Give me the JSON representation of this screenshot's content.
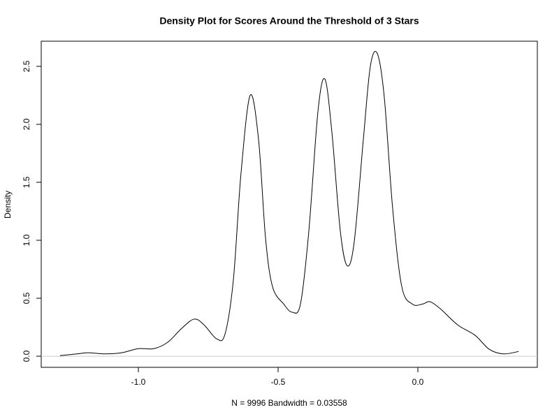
{
  "chart_data": {
    "type": "line",
    "title": "Density Plot for Scores Around the Threshold of 3 Stars",
    "x_label": "N = 9996   Bandwidth = 0.03558",
    "y_label": "Density",
    "xlim": [
      -1.3475,
      0.4275
    ],
    "ylim": [
      -0.096,
      2.717
    ],
    "xticks": [
      {
        "value": -1,
        "label": "-1.0"
      },
      -0.5,
      {
        "value": 0,
        "label": "0.0"
      }
    ],
    "yticks": [
      {
        "value": 0,
        "label": "0.0"
      },
      0.5,
      {
        "value": 1,
        "label": "1.0"
      },
      1.5,
      {
        "value": 2,
        "label": "2.0"
      },
      2.5
    ],
    "zero_line": true,
    "series": [
      {
        "name": "density",
        "color": "#000000",
        "x": [
          -1.28,
          -1.22,
          -1.18,
          -1.12,
          -1.06,
          -1.0,
          -0.945,
          -0.895,
          -0.845,
          -0.8,
          -0.765,
          -0.72,
          -0.69,
          -0.66,
          -0.633,
          -0.6,
          -0.57,
          -0.545,
          -0.52,
          -0.48,
          -0.45,
          -0.42,
          -0.39,
          -0.3575,
          -0.3325,
          -0.3075,
          -0.2775,
          -0.2525,
          -0.2275,
          -0.195,
          -0.17,
          -0.145,
          -0.12,
          -0.09,
          -0.0575,
          -0.02,
          0.0175,
          0.0425,
          0.08,
          0.1425,
          0.205,
          0.255,
          0.305,
          0.36
        ],
        "values": [
          0.005,
          0.02,
          0.03,
          0.02,
          0.03,
          0.065,
          0.065,
          0.12,
          0.24,
          0.32,
          0.27,
          0.15,
          0.19,
          0.66,
          1.57,
          2.25,
          1.87,
          1.02,
          0.6,
          0.45,
          0.38,
          0.45,
          1.08,
          2.11,
          2.39,
          1.93,
          1.08,
          0.78,
          0.99,
          1.87,
          2.5,
          2.61,
          2.23,
          1.27,
          0.6,
          0.45,
          0.45,
          0.47,
          0.41,
          0.27,
          0.18,
          0.06,
          0.02,
          0.04
        ]
      }
    ]
  }
}
